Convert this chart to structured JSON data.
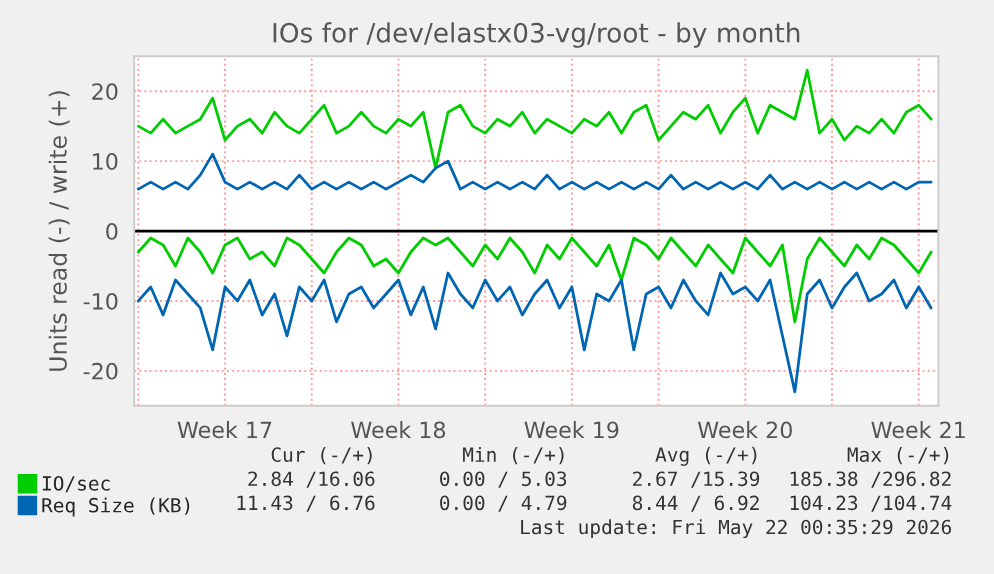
{
  "chart_data": {
    "type": "line",
    "title": "IOs for /dev/elastx03-vg/root - by month",
    "ylabel": "Units read (-) / write (+)",
    "x": [
      "2026-04-20T00:00",
      "2026-04-20T12:00",
      "2026-04-21T00:00",
      "2026-04-21T12:00",
      "2026-04-22T00:00",
      "2026-04-22T12:00",
      "2026-04-23T00:00",
      "2026-04-23T12:00",
      "2026-04-24T00:00",
      "2026-04-24T12:00",
      "2026-04-25T00:00",
      "2026-04-25T12:00",
      "2026-04-26T00:00",
      "2026-04-26T12:00",
      "2026-04-27T00:00",
      "2026-04-27T12:00",
      "2026-04-28T00:00",
      "2026-04-28T12:00",
      "2026-04-29T00:00",
      "2026-04-29T12:00",
      "2026-04-30T00:00",
      "2026-04-30T12:00",
      "2026-05-01T00:00",
      "2026-05-01T12:00",
      "2026-05-02T00:00",
      "2026-05-02T12:00",
      "2026-05-03T00:00",
      "2026-05-03T12:00",
      "2026-05-04T00:00",
      "2026-05-04T12:00",
      "2026-05-05T00:00",
      "2026-05-05T12:00",
      "2026-05-06T00:00",
      "2026-05-06T12:00",
      "2026-05-07T00:00",
      "2026-05-07T12:00",
      "2026-05-08T00:00",
      "2026-05-08T12:00",
      "2026-05-09T00:00",
      "2026-05-09T12:00",
      "2026-05-10T00:00",
      "2026-05-10T12:00",
      "2026-05-11T00:00",
      "2026-05-11T12:00",
      "2026-05-12T00:00",
      "2026-05-12T12:00",
      "2026-05-13T00:00",
      "2026-05-13T12:00",
      "2026-05-14T00:00",
      "2026-05-14T12:00",
      "2026-05-15T00:00",
      "2026-05-15T12:00",
      "2026-05-16T00:00",
      "2026-05-16T12:00",
      "2026-05-17T00:00",
      "2026-05-17T12:00",
      "2026-05-18T00:00",
      "2026-05-18T12:00",
      "2026-05-19T00:00",
      "2026-05-19T12:00",
      "2026-05-20T00:00",
      "2026-05-20T12:00",
      "2026-05-21T00:00",
      "2026-05-21T12:00",
      "2026-05-22T00:00"
    ],
    "series": [
      {
        "name": "IO/sec",
        "color": "#00cc00",
        "values": [
          15,
          14,
          16,
          14,
          15,
          16,
          19,
          13,
          15,
          16,
          14,
          17,
          15,
          14,
          16,
          18,
          14,
          15,
          17,
          15,
          14,
          16,
          15,
          17,
          9,
          17,
          18,
          15,
          14,
          16,
          15,
          17,
          14,
          16,
          15,
          14,
          16,
          15,
          17,
          14,
          17,
          18,
          13,
          15,
          17,
          16,
          18,
          14,
          17,
          19,
          14,
          18,
          17,
          16,
          23,
          14,
          16,
          13,
          15,
          14,
          16,
          14,
          17,
          18,
          16
        ]
      },
      {
        "color": "#00cc00",
        "values": [
          -3,
          -1,
          -2,
          -5,
          -1,
          -3,
          -6,
          -2,
          -1,
          -4,
          -3,
          -5,
          -1,
          -2,
          -4,
          -6,
          -3,
          -1,
          -2,
          -5,
          -4,
          -6,
          -3,
          -1,
          -2,
          -1,
          -3,
          -5,
          -2,
          -4,
          -1,
          -3,
          -6,
          -2,
          -4,
          -1,
          -3,
          -5,
          -2,
          -7,
          -1,
          -2,
          -4,
          -1,
          -3,
          -5,
          -2,
          -4,
          -6,
          -1,
          -3,
          -5,
          -2,
          -13,
          -4,
          -1,
          -3,
          -5,
          -2,
          -4,
          -1,
          -2,
          -4,
          -6,
          -3
        ]
      },
      {
        "name": "Req Size (KB)",
        "color": "#0066b3",
        "values": [
          6,
          7,
          6,
          7,
          6,
          8,
          11,
          7,
          6,
          7,
          6,
          7,
          6,
          8,
          6,
          7,
          6,
          7,
          6,
          7,
          6,
          7,
          8,
          7,
          9,
          10,
          6,
          7,
          6,
          7,
          6,
          7,
          6,
          8,
          6,
          7,
          6,
          7,
          6,
          7,
          6,
          7,
          6,
          8,
          6,
          7,
          6,
          7,
          6,
          7,
          6,
          8,
          6,
          7,
          6,
          7,
          6,
          7,
          6,
          7,
          6,
          7,
          6,
          7,
          7
        ]
      },
      {
        "color": "#0066b3",
        "values": [
          -10,
          -8,
          -12,
          -7,
          -9,
          -11,
          -17,
          -8,
          -10,
          -7,
          -12,
          -9,
          -15,
          -8,
          -10,
          -7,
          -13,
          -9,
          -8,
          -11,
          -9,
          -7,
          -12,
          -8,
          -14,
          -6,
          -9,
          -11,
          -7,
          -10,
          -8,
          -12,
          -9,
          -7,
          -11,
          -8,
          -17,
          -9,
          -10,
          -7,
          -17,
          -9,
          -8,
          -11,
          -7,
          -10,
          -12,
          -6,
          -9,
          -8,
          -10,
          -7,
          -15,
          -23,
          -9,
          -7,
          -11,
          -8,
          -6,
          -10,
          -9,
          -7,
          -11,
          -8,
          -11
        ]
      }
    ],
    "xlim": [
      "2026-04-19T20:00",
      "2026-05-22T07:00"
    ],
    "xticks": [
      {
        "value": "2026-04-20",
        "label": null
      },
      {
        "value": "2026-04-23T12:00",
        "label": "Week 17"
      },
      {
        "value": "2026-04-27",
        "label": null
      },
      {
        "value": "2026-04-30T12:00",
        "label": "Week 18"
      },
      {
        "value": "2026-05-04",
        "label": null
      },
      {
        "value": "2026-05-07T12:00",
        "label": "Week 19"
      },
      {
        "value": "2026-05-11",
        "label": null
      },
      {
        "value": "2026-05-14T12:00",
        "label": "Week 20"
      },
      {
        "value": "2026-05-18",
        "label": null
      },
      {
        "value": "2026-05-21T12:00",
        "label": "Week 21"
      }
    ],
    "ylim": [
      -25,
      25
    ],
    "yticks": [
      -20,
      -10,
      0,
      10,
      20
    ],
    "ref_lines": [
      {
        "axis": "y",
        "value": 0,
        "color": "#000000"
      }
    ],
    "grid": true,
    "legend": "bottom left",
    "line_style": "solid",
    "annotations": [
      "Cur (-/+)",
      "Min (-/+)",
      "Avg (-/+)",
      "Max (-/+)",
      "2.84 /16.06",
      "0.00 / 5.03",
      "2.67 /15.39",
      "185.38 /296.82",
      "11.43 / 6.76",
      "0.00 / 4.79",
      "8.44 / 6.92",
      "104.23 /104.74",
      "Last update: Fri May 22 00:35:29 2026"
    ]
  }
}
